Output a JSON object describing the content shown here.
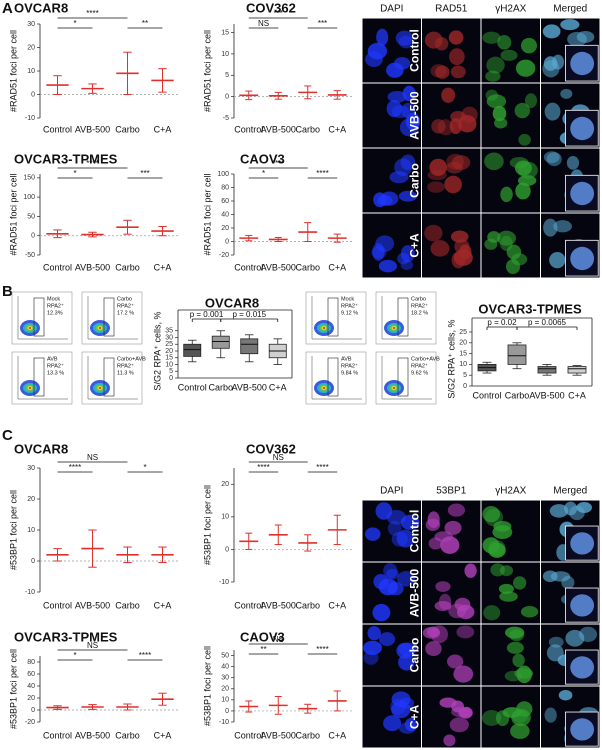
{
  "panel_labels": [
    "A",
    "B",
    "C"
  ],
  "chart_data": [
    {
      "type": "scatter",
      "title": "OVCAR8",
      "y_label": "#RAD51 foci per cell",
      "categories": [
        "Control",
        "AVB-500",
        "Carbo",
        "C+A"
      ],
      "values": [
        4,
        2.5,
        9,
        6
      ],
      "errors": [
        4,
        2,
        9,
        5
      ],
      "color": "#e0302b",
      "ylim": [
        -10,
        30
      ],
      "yticks": [
        -10,
        0,
        10,
        20,
        30
      ],
      "comparisons": [
        {
          "label": "*",
          "between": [
            "Control",
            "AVB-500"
          ]
        },
        {
          "label": "****",
          "between": [
            "Control",
            "Carbo"
          ]
        },
        {
          "label": "**",
          "between": [
            "Carbo",
            "C+A"
          ]
        }
      ]
    },
    {
      "type": "scatter",
      "title": "COV362",
      "y_label": "#RAD51 foci per cell",
      "categories": [
        "Control",
        "AVB-500",
        "Carbo",
        "C+A"
      ],
      "values": [
        0.3,
        0.2,
        1,
        0.4
      ],
      "errors": [
        1,
        0.8,
        1.5,
        1
      ],
      "color": "#e0302b",
      "ylim": [
        -5,
        17
      ],
      "yticks": [
        -5,
        0,
        5,
        10,
        15
      ],
      "comparisons": [
        {
          "label": "NS",
          "between": [
            "Control",
            "AVB-500"
          ]
        },
        {
          "label": "***",
          "between": [
            "Control",
            "Carbo"
          ]
        },
        {
          "label": "***",
          "between": [
            "Carbo",
            "C+A"
          ]
        }
      ]
    },
    {
      "type": "scatter",
      "title": "OVCAR3-TPMES",
      "y_label": "#RAD51 foci per cell",
      "categories": [
        "Control",
        "AVB-500",
        "Carbo",
        "C+A"
      ],
      "values": [
        5,
        3,
        22,
        12
      ],
      "errors": [
        10,
        6,
        18,
        12
      ],
      "color": "#e0302b",
      "ylim": [
        -50,
        160
      ],
      "yticks": [
        -50,
        0,
        50,
        100,
        150
      ],
      "comparisons": [
        {
          "label": "*",
          "between": [
            "Control",
            "AVB-500"
          ]
        },
        {
          "label": "****",
          "between": [
            "Control",
            "Carbo"
          ]
        },
        {
          "label": "***",
          "between": [
            "Carbo",
            "C+A"
          ]
        }
      ]
    },
    {
      "type": "scatter",
      "title": "CAOV3",
      "y_label": "#RAD51 foci per cell",
      "categories": [
        "Control",
        "AVB-500",
        "Carbo",
        "C+A"
      ],
      "values": [
        5,
        3,
        14,
        5
      ],
      "errors": [
        4,
        3,
        14,
        6
      ],
      "color": "#e0302b",
      "ylim": [
        -20,
        100
      ],
      "yticks": [
        -20,
        0,
        20,
        40,
        60,
        80,
        100
      ],
      "comparisons": [
        {
          "label": "*",
          "between": [
            "Control",
            "AVB-500"
          ]
        },
        {
          "label": "****",
          "between": [
            "Control",
            "Carbo"
          ]
        },
        {
          "label": "****",
          "between": [
            "Carbo",
            "C+A"
          ]
        }
      ]
    },
    {
      "type": "box",
      "title": "OVCAR8",
      "y_label": "S/G2 RPA⁺ cells, %",
      "categories": [
        "Control",
        "Carbo",
        "AVB-500",
        "C+A"
      ],
      "boxes": [
        {
          "min": 12,
          "q1": 16,
          "median": 21,
          "q3": 25,
          "max": 28
        },
        {
          "min": 15,
          "q1": 22,
          "median": 27,
          "q3": 31,
          "max": 35
        },
        {
          "min": 12,
          "q1": 18,
          "median": 25,
          "q3": 29,
          "max": 32
        },
        {
          "min": 10,
          "q1": 15,
          "median": 20,
          "q3": 25,
          "max": 29
        }
      ],
      "colors": [
        "#555555",
        "#999999",
        "#777777",
        "#d0d0d0"
      ],
      "ylim": [
        0,
        40
      ],
      "yticks": [
        0,
        5,
        10,
        15,
        20,
        25,
        30,
        35
      ],
      "comparisons": [
        {
          "label": "p = 0.001",
          "between": [
            "Control",
            "Carbo"
          ]
        },
        {
          "label": "p = 0.015",
          "between": [
            "Carbo",
            "C+A"
          ]
        }
      ]
    },
    {
      "type": "box",
      "title": "OVCAR3-TPMES",
      "y_label": "S/G2 RPA⁺ cells, %",
      "categories": [
        "Control",
        "Carbo",
        "AVB-500",
        "C+A"
      ],
      "boxes": [
        {
          "min": 6,
          "q1": 7,
          "median": 8.5,
          "q3": 10,
          "max": 11
        },
        {
          "min": 8,
          "q1": 10,
          "median": 14,
          "q3": 19,
          "max": 20
        },
        {
          "min": 5,
          "q1": 6,
          "median": 8,
          "q3": 9,
          "max": 10
        },
        {
          "min": 5,
          "q1": 6,
          "median": 8,
          "q3": 9,
          "max": 9.5
        }
      ],
      "colors": [
        "#555555",
        "#999999",
        "#777777",
        "#d0d0d0"
      ],
      "ylim": [
        0,
        25
      ],
      "yticks": [
        0,
        5,
        10,
        15,
        20,
        25
      ],
      "comparisons": [
        {
          "label": "p = 0.02",
          "between": [
            "Control",
            "Carbo"
          ]
        },
        {
          "label": "p = 0.0065",
          "between": [
            "Carbo",
            "C+A"
          ]
        }
      ]
    },
    {
      "type": "scatter",
      "title": "OVCAR8",
      "y_label": "#53BP1 foci per cell",
      "categories": [
        "Control",
        "AVB-500",
        "Carbo",
        "C+A"
      ],
      "values": [
        2,
        4,
        2,
        2
      ],
      "errors": [
        2,
        6,
        2.5,
        2.5
      ],
      "color": "#e0302b",
      "ylim": [
        -10,
        30
      ],
      "yticks": [
        -10,
        0,
        10,
        20,
        30
      ],
      "comparisons": [
        {
          "label": "****",
          "between": [
            "Control",
            "AVB-500"
          ]
        },
        {
          "label": "NS",
          "between": [
            "Control",
            "Carbo"
          ]
        },
        {
          "label": "*",
          "between": [
            "Carbo",
            "C+A"
          ]
        }
      ]
    },
    {
      "type": "scatter",
      "title": "COV362",
      "y_label": "#53BP1 foci per cell",
      "categories": [
        "Control",
        "AVB-500",
        "Carbo",
        "C+A"
      ],
      "values": [
        2.5,
        4.5,
        2,
        6
      ],
      "errors": [
        2.5,
        3,
        2.5,
        4.5
      ],
      "color": "#e0302b",
      "ylim": [
        -10,
        25
      ],
      "yticks": [
        -10,
        0,
        10,
        20
      ],
      "comparisons": [
        {
          "label": "****",
          "between": [
            "Control",
            "AVB-500"
          ]
        },
        {
          "label": "NS",
          "between": [
            "Control",
            "Carbo"
          ]
        },
        {
          "label": "****",
          "between": [
            "Carbo",
            "C+A"
          ]
        }
      ]
    },
    {
      "type": "scatter",
      "title": "OVCAR3-TPMES",
      "y_label": "#53BP1 foci per cell",
      "categories": [
        "Control",
        "AVB-500",
        "Carbo",
        "C+A"
      ],
      "values": [
        4,
        5,
        5,
        18
      ],
      "errors": [
        3,
        4,
        5,
        10
      ],
      "color": "#e0302b",
      "ylim": [
        -20,
        90
      ],
      "yticks": [
        -20,
        0,
        20,
        40,
        60,
        80
      ],
      "comparisons": [
        {
          "label": "*",
          "between": [
            "Control",
            "AVB-500"
          ]
        },
        {
          "label": "NS",
          "between": [
            "Control",
            "Carbo"
          ]
        },
        {
          "label": "****",
          "between": [
            "Carbo",
            "C+A"
          ]
        }
      ]
    },
    {
      "type": "scatter",
      "title": "CAOV3",
      "y_label": "#53BP1 foci per cell",
      "categories": [
        "Control",
        "AVB-500",
        "Carbo",
        "C+A"
      ],
      "values": [
        4,
        5,
        2,
        9
      ],
      "errors": [
        5,
        8,
        4,
        9
      ],
      "color": "#e0302b",
      "ylim": [
        -10,
        55
      ],
      "yticks": [
        -10,
        0,
        10,
        20,
        30,
        40,
        50
      ],
      "comparisons": [
        {
          "label": "**",
          "between": [
            "Control",
            "AVB-500"
          ]
        },
        {
          "label": "NS",
          "between": [
            "Control",
            "Carbo"
          ]
        },
        {
          "label": "****",
          "between": [
            "Carbo",
            "C+A"
          ]
        }
      ]
    }
  ],
  "micrographs": [
    {
      "channels": [
        "DAPI",
        "RAD51",
        "γH2AX",
        "Merged"
      ],
      "conditions": [
        "Control",
        "AVB-500",
        "Carbo",
        "C+A"
      ]
    },
    {
      "channels": [
        "DAPI",
        "53BP1",
        "γH2AX",
        "Merged"
      ],
      "conditions": [
        "Control",
        "AVB-500",
        "Carbo",
        "C+A"
      ]
    }
  ],
  "flow_panels": [
    [
      {
        "sample": "Mock",
        "gate": "RPA2⁺",
        "percent": "12.3%"
      },
      {
        "sample": "Carbo",
        "gate": "RPA2⁺",
        "percent": "17.2 %"
      },
      {
        "sample": "AVB",
        "gate": "RPA2⁺",
        "percent": "13.3 %"
      },
      {
        "sample": "Carbo+AVB",
        "gate": "RPA2⁺",
        "percent": "11.3 %"
      }
    ],
    [
      {
        "sample": "Mock",
        "gate": "RPA2⁺",
        "percent": "9.12 %"
      },
      {
        "sample": "Carbo",
        "gate": "RPA2⁺",
        "percent": "18.2 %"
      },
      {
        "sample": "AVB",
        "gate": "RPA2⁺",
        "percent": "9.84 %"
      },
      {
        "sample": "Carbo+AVB",
        "gate": "RPA2⁺",
        "percent": "9.62 %"
      }
    ]
  ]
}
